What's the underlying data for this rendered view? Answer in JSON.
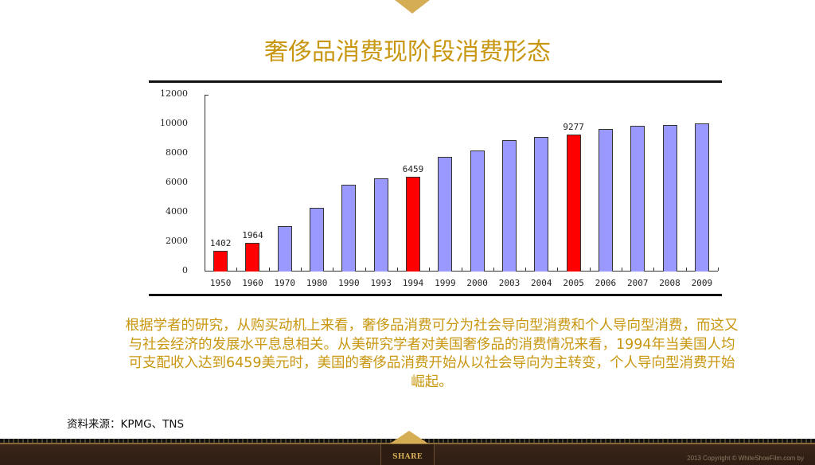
{
  "title": "奢侈品消费现阶段消费形态",
  "chart_data": {
    "type": "bar",
    "title": "",
    "xlabel": "",
    "ylabel": "",
    "ylim": [
      0,
      12000
    ],
    "yticks": [
      0,
      2000,
      4000,
      6000,
      8000,
      10000,
      12000
    ],
    "grid": false,
    "legend": "none",
    "categories": [
      "1950",
      "1960",
      "1970",
      "1980",
      "1990",
      "1993",
      "1994",
      "1999",
      "2000",
      "2003",
      "2004",
      "2005",
      "2006",
      "2007",
      "2008",
      "2009"
    ],
    "values": [
      1402,
      1964,
      3100,
      4300,
      5900,
      6300,
      6459,
      7800,
      8200,
      8900,
      9150,
      9277,
      9700,
      9900,
      9950,
      10050
    ],
    "highlighted": [
      "1950",
      "1960",
      "1994",
      "2005"
    ],
    "data_labels": {
      "1950": "1402",
      "1960": "1964",
      "1994": "6459",
      "2005": "9277"
    },
    "colors": {
      "default": "#9999ff",
      "highlight": "#ff0000"
    }
  },
  "description": "根据学者的研究，从购买动机上来看，奢侈品消费可分为社会导向型消费和个人导向型消费，而这又与社会经济的发展水平息息相关。从美研究学者对美国奢侈品的消费情况来看，1994年当美国人均可支配收入达到6459美元时，美国的奢侈品消费开始从以社会导向为主转变，个人导向型消费开始崛起。",
  "source": "资料来源：KPMG、TNS",
  "footer": {
    "share_label": "SHARE",
    "copyright": "2013 Copyright © WhiteShoeFilm.com by"
  },
  "colors": {
    "accent_gold": "#c8960f",
    "notch_gold": "#d5ad55",
    "footer_brown": "#3a2518"
  }
}
